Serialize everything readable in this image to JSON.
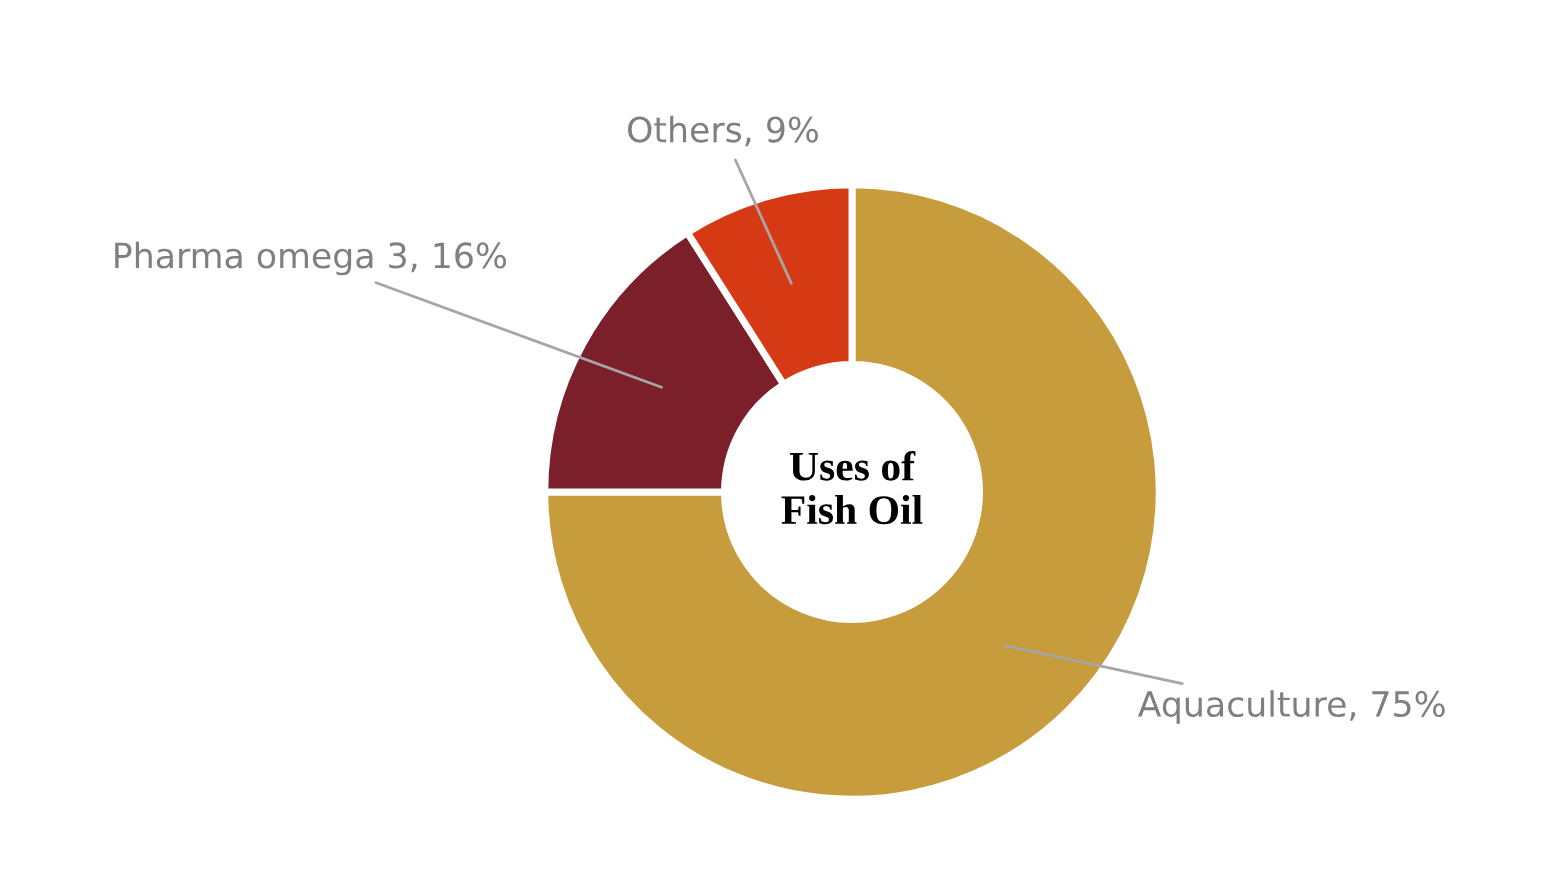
{
  "chart_data": {
    "type": "donut",
    "title": "Uses of\nFish Oil",
    "categories": [
      "Aquaculture",
      "Pharma omega 3",
      "Others"
    ],
    "values": [
      75,
      16,
      9
    ],
    "value_labels": [
      "75%",
      "16%",
      "9%"
    ],
    "colors": [
      "#c69c3c",
      "#7b1f2b",
      "#d63a14"
    ],
    "legend": false
  }
}
